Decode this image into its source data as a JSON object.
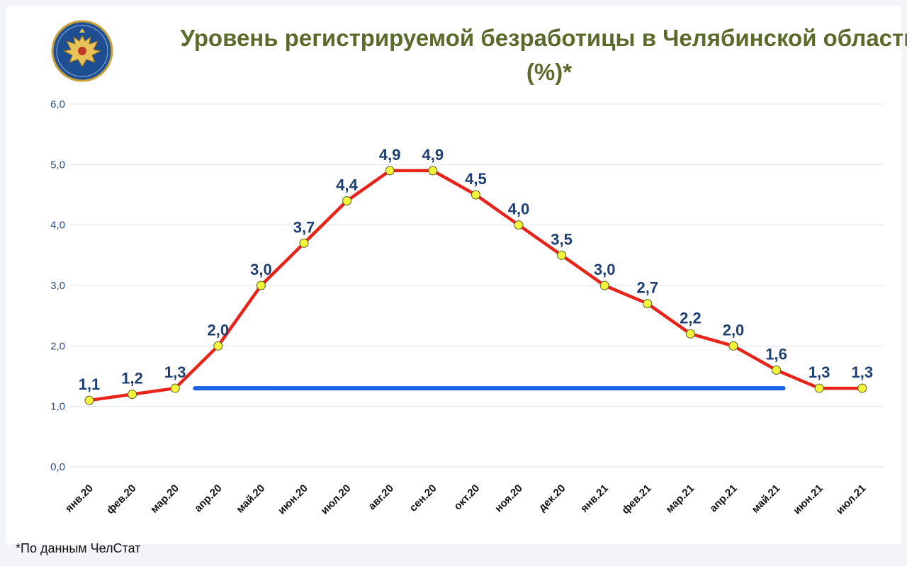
{
  "title": "Уровень регистрируемой безработицы в Челябинской области (%)*",
  "footnote": "*По данным ЧелСтат",
  "colors": {
    "line": "#e8231a",
    "marker_fill": "#f2f53a",
    "reference_line": "#1b63e6",
    "title": "#5a6b2c",
    "data_label": "#1f3f72"
  },
  "chart_data": {
    "type": "line",
    "title": "Уровень регистрируемой безработицы в Челябинской области (%)*",
    "categories": [
      "янв.20",
      "фев.20",
      "мар.20",
      "апр.20",
      "май.20",
      "июн.20",
      "июл.20",
      "авг.20",
      "сен.20",
      "окт.20",
      "ноя.20",
      "дек.20",
      "янв.21",
      "фев.21",
      "мар.21",
      "апр.21",
      "май.21",
      "июн.21",
      "июл.21"
    ],
    "values": [
      1.1,
      1.2,
      1.3,
      2.0,
      3.0,
      3.7,
      4.4,
      4.9,
      4.9,
      4.5,
      4.0,
      3.5,
      3.0,
      2.7,
      2.2,
      2.0,
      1.6,
      1.3,
      1.3
    ],
    "data_labels": [
      "1,1",
      "1,2",
      "1,3",
      "2,0",
      "3,0",
      "3,7",
      "4,4",
      "4,9",
      "4,9",
      "4,5",
      "4,0",
      "3,5",
      "3,0",
      "2,7",
      "2,2",
      "2,0",
      "1,6",
      "1,3",
      "1,3"
    ],
    "yticks": [
      0,
      1,
      2,
      3,
      4,
      5,
      6
    ],
    "ytick_labels": [
      "0,0",
      "1,0",
      "2,0",
      "3,0",
      "4,0",
      "5,0",
      "6,0"
    ],
    "ylim": [
      0,
      6
    ],
    "grid": true,
    "reference_line": {
      "value": 1.3,
      "from": "мар.20",
      "to": "май.21"
    },
    "xlabel": "",
    "ylabel": ""
  }
}
